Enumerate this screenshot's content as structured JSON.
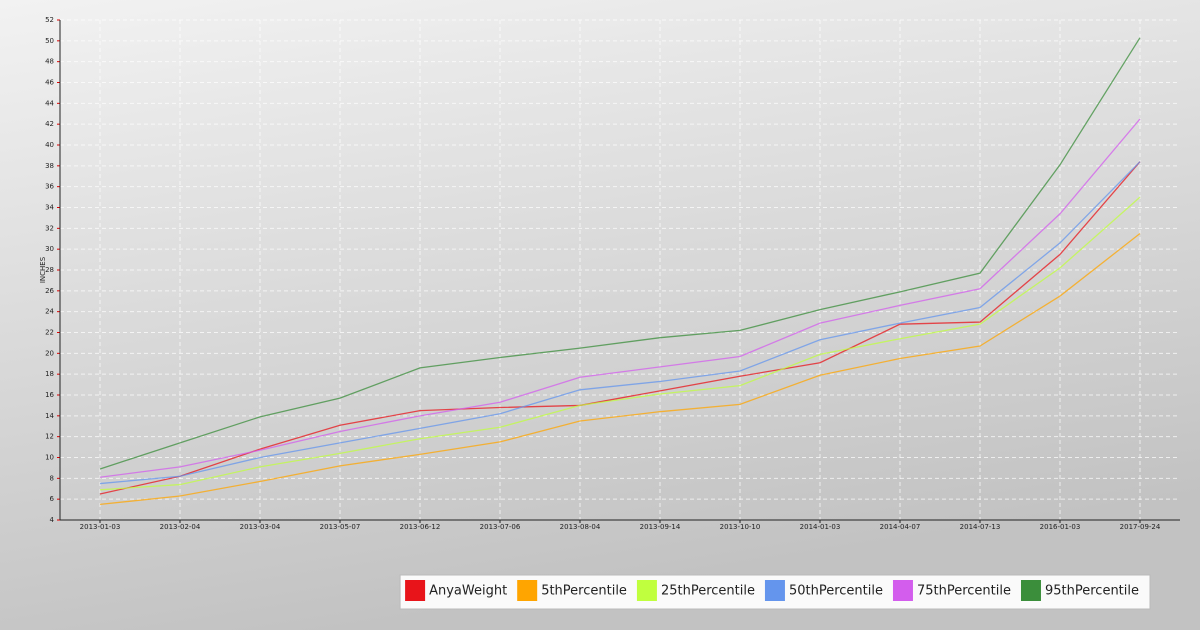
{
  "chart_data": {
    "type": "line",
    "y_label": "INCHES",
    "categories": [
      "2013-01-03",
      "2013-02-04",
      "2013-03-04",
      "2013-05-07",
      "2013-06-12",
      "2013-07-06",
      "2013-08-04",
      "2013-09-14",
      "2013-10-10",
      "2014-01-03",
      "2014-04-07",
      "2014-07-13",
      "2016-01-03",
      "2017-09-24"
    ],
    "ylim": [
      4,
      52
    ],
    "yticks": [
      4,
      6,
      8,
      10,
      12,
      14,
      16,
      18,
      20,
      22,
      24,
      26,
      28,
      30,
      32,
      34,
      36,
      38,
      40,
      42,
      44,
      46,
      48,
      50,
      52
    ],
    "grid": true,
    "legend": "bottom-right",
    "series": [
      {
        "name": "AnyaWeight",
        "color": "#e8141a",
        "values": [
          6.5,
          8.2,
          10.8,
          13.1,
          14.5,
          14.8,
          15.0,
          16.4,
          17.8,
          19.1,
          22.8,
          23.0,
          29.5,
          38.4
        ]
      },
      {
        "name": "5thPercentile",
        "color": "#ffa500",
        "values": [
          5.5,
          6.3,
          7.7,
          9.2,
          10.3,
          11.5,
          13.5,
          14.4,
          15.1,
          17.9,
          19.5,
          20.7,
          25.5,
          31.5
        ]
      },
      {
        "name": "25thPercentile",
        "color": "#c0ff3e",
        "values": [
          6.9,
          7.4,
          9.1,
          10.4,
          11.8,
          12.9,
          15.0,
          16.1,
          16.9,
          19.9,
          21.4,
          22.8,
          28.2,
          35.0
        ]
      },
      {
        "name": "50thPercentile",
        "color": "#6495ed",
        "values": [
          7.5,
          8.2,
          10.0,
          11.4,
          12.8,
          14.2,
          16.5,
          17.3,
          18.3,
          21.3,
          22.9,
          24.4,
          30.6,
          38.4
        ]
      },
      {
        "name": "75thPercentile",
        "color": "#d35ded",
        "values": [
          8.1,
          9.1,
          10.7,
          12.5,
          14.0,
          15.3,
          17.7,
          18.7,
          19.7,
          22.9,
          24.6,
          26.2,
          33.4,
          42.5
        ]
      },
      {
        "name": "95thPercentile",
        "color": "#3b8e3b",
        "values": [
          8.9,
          11.4,
          13.9,
          15.7,
          18.6,
          19.6,
          20.5,
          21.5,
          22.2,
          24.2,
          25.9,
          27.7,
          38.1,
          50.3
        ]
      }
    ]
  }
}
